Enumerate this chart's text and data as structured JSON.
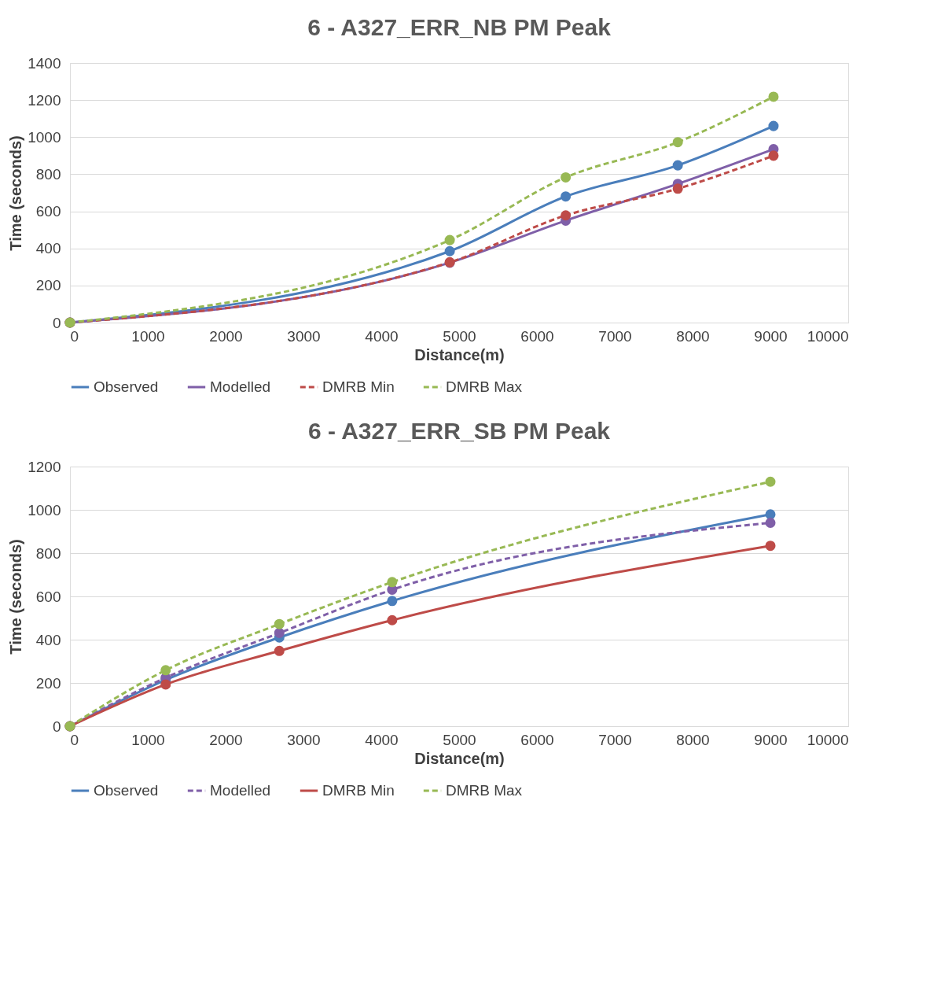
{
  "chart_data": [
    {
      "type": "line",
      "title": "6 - A327_ERR_NB PM Peak",
      "xlabel": "Distance(m)",
      "ylabel": "Time (seconds)",
      "x": [
        0,
        4880,
        6370,
        7810,
        9040
      ],
      "xlim": [
        0,
        10000
      ],
      "xticks": [
        0,
        1000,
        2000,
        3000,
        4000,
        5000,
        6000,
        7000,
        8000,
        9000,
        10000
      ],
      "ylim": [
        0,
        1400
      ],
      "yticks": [
        0,
        200,
        400,
        600,
        800,
        1000,
        1200,
        1400
      ],
      "grid": "y",
      "legend": "bottom",
      "marker": "circle",
      "series": [
        {
          "name": "Observed",
          "color": "#4a7ebb",
          "line_style": "solid",
          "values": [
            0,
            385,
            680,
            848,
            1060
          ]
        },
        {
          "name": "Modelled",
          "color": "#7f5fa8",
          "line_style": "solid",
          "values": [
            0,
            323,
            550,
            748,
            935
          ]
        },
        {
          "name": "DMRB Min",
          "color": "#be4b48",
          "line_style": "dashed",
          "values": [
            0,
            325,
            578,
            722,
            900
          ]
        },
        {
          "name": "DMRB Max",
          "color": "#98b954",
          "line_style": "dashed",
          "values": [
            0,
            445,
            783,
            973,
            1218
          ]
        }
      ]
    },
    {
      "type": "line",
      "title": "6 - A327_ERR_SB PM Peak",
      "xlabel": "Distance(m)",
      "ylabel": "Time (seconds)",
      "x": [
        0,
        1230,
        2690,
        4140,
        9000
      ],
      "xlim": [
        0,
        10000
      ],
      "xticks": [
        0,
        1000,
        2000,
        3000,
        4000,
        5000,
        6000,
        7000,
        8000,
        9000,
        10000
      ],
      "ylim": [
        0,
        1200
      ],
      "yticks": [
        0,
        200,
        400,
        600,
        800,
        1000,
        1200
      ],
      "grid": "y",
      "legend": "bottom",
      "marker": "circle",
      "series": [
        {
          "name": "Observed",
          "color": "#4a7ebb",
          "line_style": "solid",
          "values": [
            0,
            214,
            410,
            579,
            979
          ]
        },
        {
          "name": "Modelled",
          "color": "#7f5fa8",
          "line_style": "dashed",
          "values": [
            0,
            224,
            431,
            631,
            940
          ]
        },
        {
          "name": "DMRB Min",
          "color": "#be4b48",
          "line_style": "solid",
          "values": [
            0,
            193,
            348,
            490,
            834
          ]
        },
        {
          "name": "DMRB Max",
          "color": "#98b954",
          "line_style": "dashed",
          "values": [
            0,
            259,
            472,
            666,
            1130
          ]
        }
      ]
    }
  ]
}
